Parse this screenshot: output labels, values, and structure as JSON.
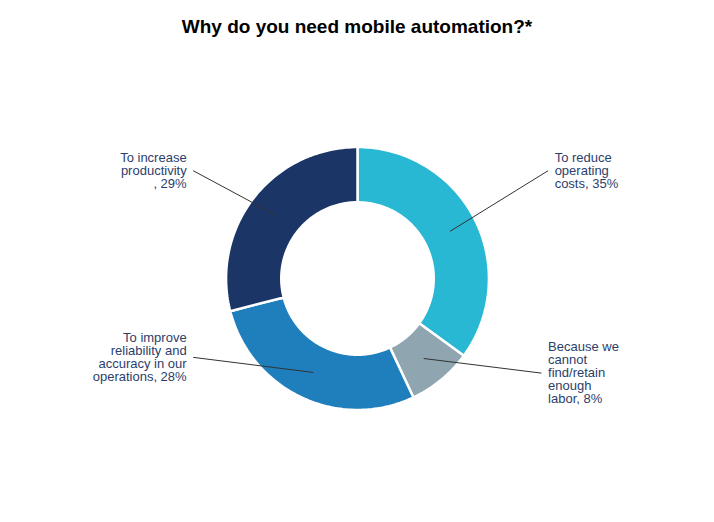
{
  "chart_data": {
    "type": "donut",
    "title": "Why do you need mobile automation?*",
    "categories": [
      "To reduce\noperating\ncosts, 35%",
      "Because we\ncannot\nfind/retain\nenough\nlabor, 8%",
      "To improve\nreliability and\naccuracy in our\noperations, 28%",
      "To increase\nproductivity\n, 29%"
    ],
    "values": [
      35,
      8,
      28,
      29
    ],
    "colors": [
      "#29B8D4",
      "#8FA5B0",
      "#1E7FBC",
      "#1A3566"
    ],
    "tick_labels": false
  }
}
